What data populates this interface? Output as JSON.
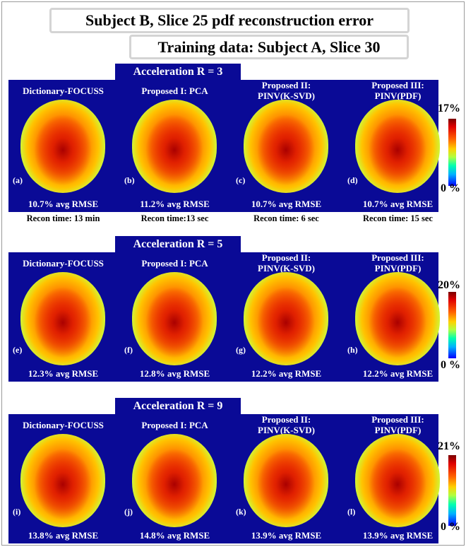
{
  "title": "Subject B, Slice 25 pdf reconstruction error",
  "subtitle": "Training data: Subject A, Slice 30",
  "colors": {
    "panel_bg": "#0a0a96",
    "panel_text": "#ffffff"
  },
  "sections": [
    {
      "acceleration": "Acceleration R = 3",
      "colorbar_max": "17%",
      "colorbar_min": "0 %",
      "columns": [
        {
          "title1": "Dictionary-FOCUSS",
          "title2": "",
          "letter": "(a)",
          "rmse": "10.7% avg RMSE",
          "recon_time": "Recon time: 13 min"
        },
        {
          "title1": "Proposed I: PCA",
          "title2": "",
          "letter": "(b)",
          "rmse": "11.2% avg RMSE",
          "recon_time": "Recon time:13 sec"
        },
        {
          "title1": "Proposed II:",
          "title2": "PINV(K-SVD)",
          "letter": "(c)",
          "rmse": "10.7% avg RMSE",
          "recon_time": "Recon time: 6 sec"
        },
        {
          "title1": "Proposed III:",
          "title2": "PINV(PDF)",
          "letter": "(d)",
          "rmse": "10.7% avg RMSE",
          "recon_time": "Recon time: 15 sec"
        }
      ]
    },
    {
      "acceleration": "Acceleration R = 5",
      "colorbar_max": "20%",
      "colorbar_min": "0 %",
      "columns": [
        {
          "title1": "Dictionary-FOCUSS",
          "title2": "",
          "letter": "(e)",
          "rmse": "12.3% avg RMSE"
        },
        {
          "title1": "Proposed I: PCA",
          "title2": "",
          "letter": "(f)",
          "rmse": "12.8% avg RMSE"
        },
        {
          "title1": "Proposed II:",
          "title2": "PINV(K-SVD)",
          "letter": "(g)",
          "rmse": "12.2% avg RMSE"
        },
        {
          "title1": "Proposed III:",
          "title2": "PINV(PDF)",
          "letter": "(h)",
          "rmse": "12.2% avg RMSE"
        }
      ]
    },
    {
      "acceleration": "Acceleration R = 9",
      "colorbar_max": "21%",
      "colorbar_min": "0 %",
      "columns": [
        {
          "title1": "Dictionary-FOCUSS",
          "title2": "",
          "letter": "(i)",
          "rmse": "13.8% avg RMSE"
        },
        {
          "title1": "Proposed I: PCA",
          "title2": "",
          "letter": "(j)",
          "rmse": "14.8% avg RMSE"
        },
        {
          "title1": "Proposed II:",
          "title2": "PINV(K-SVD)",
          "letter": "(k)",
          "rmse": "13.9% avg RMSE"
        },
        {
          "title1": "Proposed III:",
          "title2": "PINV(PDF)",
          "letter": "(l)",
          "rmse": "13.9% avg RMSE"
        }
      ]
    }
  ]
}
